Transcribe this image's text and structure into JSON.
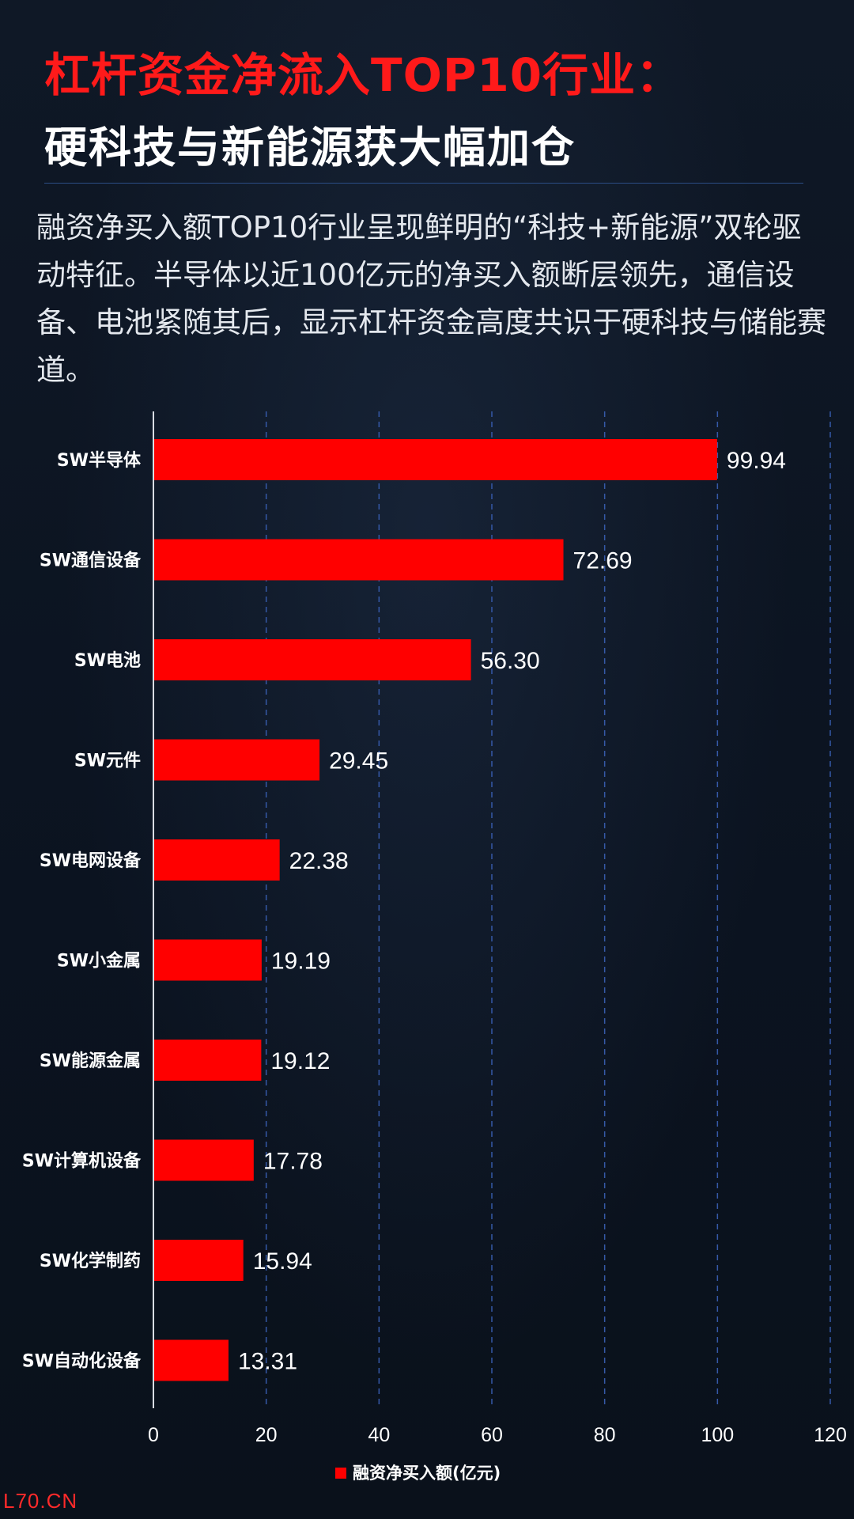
{
  "header": {
    "title_red": "杠杆资金净流入TOP10行业：",
    "title_white": "硬科技与新能源获大幅加仓",
    "description": "融资净买入额TOP10行业呈现鲜明的“科技+新能源”双轮驱动特征。半导体以近100亿元的净买入额断层领先，通信设备、电池紧随其后，显示杠杆资金高度共识于硬科技与储能赛道。"
  },
  "chart_data": {
    "type": "bar",
    "orientation": "horizontal",
    "categories": [
      "SW半导体",
      "SW通信设备",
      "SW电池",
      "SW元件",
      "SW电网设备",
      "SW小金属",
      "SW能源金属",
      "SW计算机设备",
      "SW化学制药",
      "SW自动化设备"
    ],
    "series": [
      {
        "name": "融资净买入额(亿元)",
        "values": [
          99.94,
          72.69,
          56.3,
          29.45,
          22.38,
          19.19,
          19.12,
          17.78,
          15.94,
          13.31
        ],
        "labels": [
          "99.94",
          "72.69",
          "56.30",
          "29.45",
          "22.38",
          "19.19",
          "19.12",
          "17.78",
          "15.94",
          "13.31"
        ],
        "color": "#ff0000"
      }
    ],
    "xlim": [
      0,
      120
    ],
    "xticks": [
      "0",
      "20",
      "40",
      "60",
      "80",
      "100",
      "120"
    ],
    "grid": "vertical dashed",
    "legend_position": "bottom"
  },
  "colors": {
    "background": "#0d1522",
    "accent_red": "#ff1a1a",
    "bar": "#ff0000",
    "grid": "#3559a8"
  },
  "watermark": "L70.CN"
}
